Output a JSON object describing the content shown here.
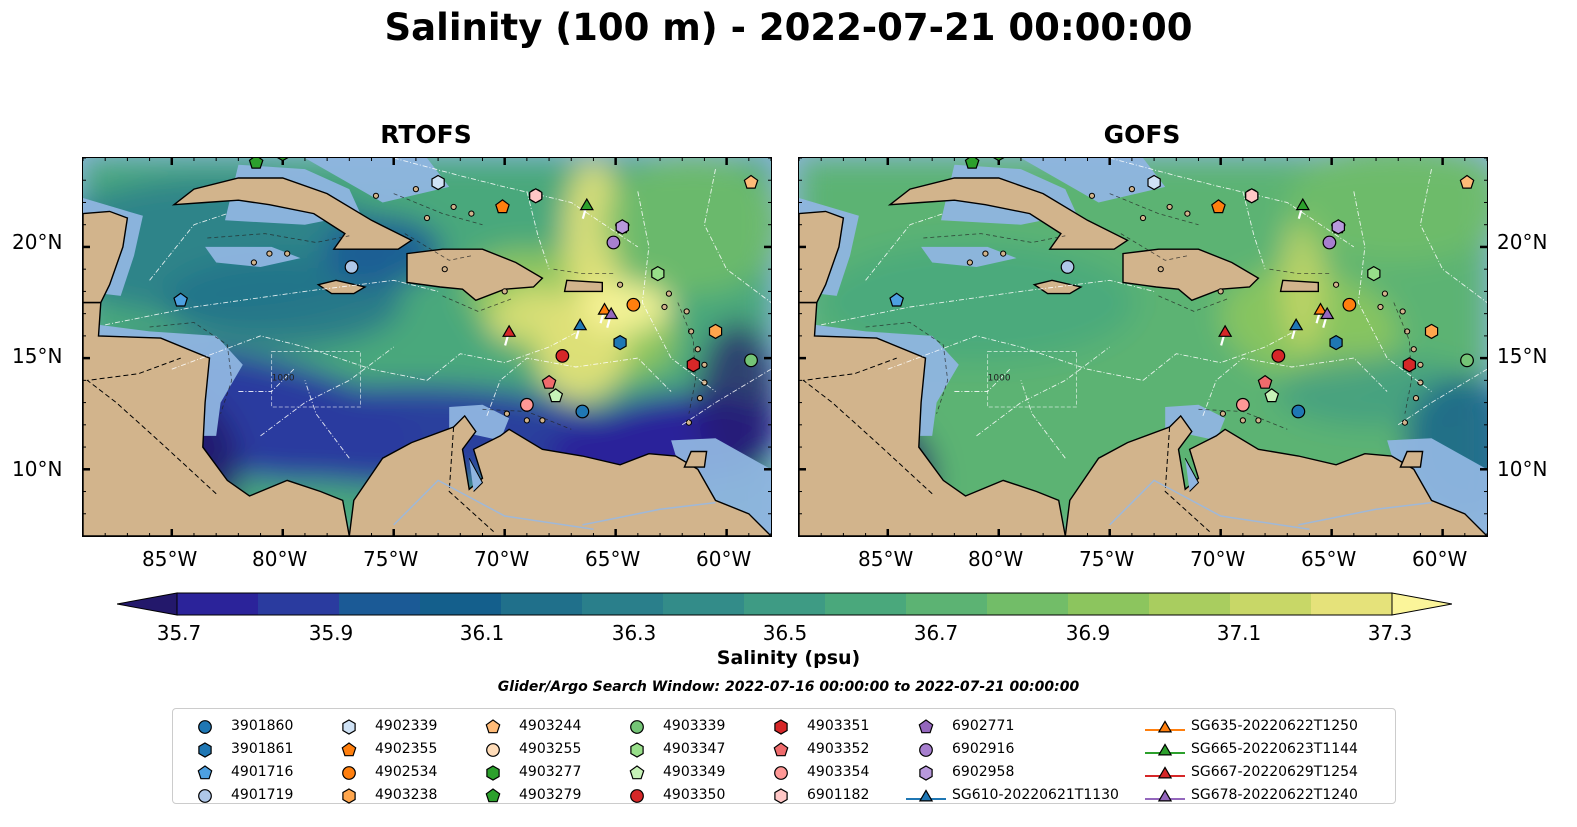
{
  "title": "Salinity (100 m) - 2022-07-21 00:00:00",
  "panels": [
    {
      "title": "RTOFS",
      "model": "rtofs"
    },
    {
      "title": "GOFS",
      "model": "gofs"
    }
  ],
  "axes": {
    "lon_ticks": [
      "85°W",
      "80°W",
      "75°W",
      "70°W",
      "65°W",
      "60°W"
    ],
    "lat_ticks": [
      "20°N",
      "15°N",
      "10°N"
    ],
    "lon_range": [
      -89,
      -58
    ],
    "lat_range": [
      7,
      24
    ]
  },
  "colorbar": {
    "label": "Salinity (psu)",
    "ticks": [
      "35.7",
      "35.9",
      "36.1",
      "36.3",
      "36.5",
      "36.7",
      "36.9",
      "37.1",
      "37.3"
    ],
    "range": [
      35.6,
      37.4
    ],
    "extend": "both",
    "colors": [
      "#23186b",
      "#2b239a",
      "#2a3b9f",
      "#1b5a96",
      "#145f8c",
      "#20708b",
      "#2a7f8b",
      "#338c89",
      "#3e9b84",
      "#4aa87c",
      "#5cb373",
      "#72bd68",
      "#8cc55e",
      "#a9cd5f",
      "#c8d767",
      "#e5e27a",
      "#fbf59a"
    ]
  },
  "search_window": "Glider/Argo Search Window: 2022-07-16 00:00:00 to 2022-07-21 00:00:00",
  "bathymetry_label": "1000",
  "legend": [
    {
      "label": "3901860",
      "marker": "circle",
      "color": "#1f77b4"
    },
    {
      "label": "3901861",
      "marker": "hexagon",
      "color": "#1f77b4"
    },
    {
      "label": "4901716",
      "marker": "pentagon",
      "color": "#4da0e0"
    },
    {
      "label": "4901719",
      "marker": "circle",
      "color": "#aec7e8"
    },
    {
      "label": "4902339",
      "marker": "hexagon",
      "color": "#cfe2f5"
    },
    {
      "label": "4902355",
      "marker": "pentagon",
      "color": "#ff7f0e"
    },
    {
      "label": "4902534",
      "marker": "circle",
      "color": "#ff7f0e"
    },
    {
      "label": "4903238",
      "marker": "hexagon",
      "color": "#ffa64d"
    },
    {
      "label": "4903244",
      "marker": "pentagon",
      "color": "#ffbb78"
    },
    {
      "label": "4903255",
      "marker": "circle",
      "color": "#ffdcb8"
    },
    {
      "label": "4903277",
      "marker": "hexagon",
      "color": "#2ca02c"
    },
    {
      "label": "4903279",
      "marker": "pentagon",
      "color": "#2ca02c"
    },
    {
      "label": "4903339",
      "marker": "circle",
      "color": "#74c476"
    },
    {
      "label": "4903347",
      "marker": "hexagon",
      "color": "#98df8a"
    },
    {
      "label": "4903349",
      "marker": "pentagon",
      "color": "#c7f2b8"
    },
    {
      "label": "4903350",
      "marker": "circle",
      "color": "#d62728"
    },
    {
      "label": "4903351",
      "marker": "hexagon",
      "color": "#d62728"
    },
    {
      "label": "4903352",
      "marker": "pentagon",
      "color": "#ef6b6c"
    },
    {
      "label": "4903354",
      "marker": "circle",
      "color": "#ff9896"
    },
    {
      "label": "6901182",
      "marker": "hexagon",
      "color": "#ffc7c6"
    },
    {
      "label": "6902771",
      "marker": "pentagon",
      "color": "#9467bd"
    },
    {
      "label": "6902916",
      "marker": "circle",
      "color": "#a77fcf"
    },
    {
      "label": "6902958",
      "marker": "hexagon",
      "color": "#b899dc"
    },
    {
      "label": "SG610-20220621T1130",
      "marker": "triangle-line",
      "color": "#1f77b4"
    },
    {
      "label": "SG635-20220622T1250",
      "marker": "triangle-line",
      "color": "#ff7f0e"
    },
    {
      "label": "SG665-20220623T1144",
      "marker": "triangle-line",
      "color": "#2ca02c"
    },
    {
      "label": "SG667-20220629T1254",
      "marker": "triangle-line",
      "color": "#d62728"
    },
    {
      "label": "SG678-20220622T1240",
      "marker": "triangle-line",
      "color": "#9467bd"
    }
  ],
  "platforms": [
    {
      "id": "3901860",
      "lon": -66.5,
      "lat": 12.6
    },
    {
      "id": "3901861",
      "lon": -64.8,
      "lat": 15.7
    },
    {
      "id": "4901716",
      "lon": -84.6,
      "lat": 17.6
    },
    {
      "id": "4901719",
      "lon": -76.9,
      "lat": 19.1
    },
    {
      "id": "4902339",
      "lon": -73.0,
      "lat": 22.9
    },
    {
      "id": "4902355",
      "lon": -70.1,
      "lat": 21.8
    },
    {
      "id": "4902534",
      "lon": -64.2,
      "lat": 17.4
    },
    {
      "id": "4903238",
      "lon": -60.5,
      "lat": 16.2
    },
    {
      "id": "4903244",
      "lon": -58.9,
      "lat": 22.9
    },
    {
      "id": "4903255",
      "lon": -68.6,
      "lat": 22.3
    },
    {
      "id": "4903277",
      "lon": -80.0,
      "lat": 24.2
    },
    {
      "id": "4903279",
      "lon": -81.2,
      "lat": 23.8
    },
    {
      "id": "4903339",
      "lon": -58.9,
      "lat": 14.9
    },
    {
      "id": "4903347",
      "lon": -63.1,
      "lat": 18.8
    },
    {
      "id": "4903349",
      "lon": -67.7,
      "lat": 13.3
    },
    {
      "id": "4903350",
      "lon": -67.4,
      "lat": 15.1
    },
    {
      "id": "4903351",
      "lon": -61.5,
      "lat": 14.7
    },
    {
      "id": "4903352",
      "lon": -68.0,
      "lat": 13.9
    },
    {
      "id": "4903354",
      "lon": -69.0,
      "lat": 12.9
    },
    {
      "id": "6901182",
      "lon": -68.6,
      "lat": 22.3
    },
    {
      "id": "6902771",
      "lon": -64.7,
      "lat": 20.9
    },
    {
      "id": "6902916",
      "lon": -65.1,
      "lat": 20.2
    },
    {
      "id": "6902958",
      "lon": -64.7,
      "lat": 20.9
    },
    {
      "id": "SG610-20220621T1130",
      "lon": -66.6,
      "lat": 16.5
    },
    {
      "id": "SG635-20220622T1250",
      "lon": -65.5,
      "lat": 17.2
    },
    {
      "id": "SG665-20220623T1144",
      "lon": -66.3,
      "lat": 21.9
    },
    {
      "id": "SG667-20220629T1254",
      "lon": -69.8,
      "lat": 16.2
    },
    {
      "id": "SG678-20220622T1240",
      "lon": -65.2,
      "lat": 17.0
    }
  ]
}
